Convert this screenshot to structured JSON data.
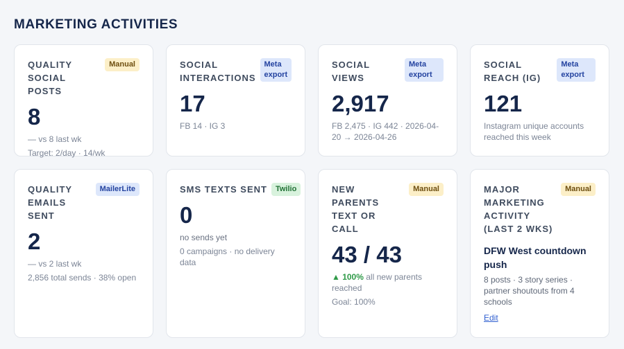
{
  "header": {
    "title": "MARKETING ACTIVITIES"
  },
  "cards": [
    {
      "label": "QUALITY SOCIAL POSTS",
      "badge": "Manual",
      "value": "8",
      "lines": [
        "— vs 8 last wk",
        "Target: 2/day · 14/wk"
      ]
    },
    {
      "label": "SOCIAL INTERACTIONS",
      "badge": "Meta export",
      "value": "17",
      "lines": [
        "FB 14 · IG 3"
      ]
    },
    {
      "label": "SOCIAL VIEWS",
      "badge": "Meta export",
      "value": "2,917",
      "lines": [
        "FB 2,475 · IG 442 · 2026-04-20 → 2026-04-26"
      ]
    },
    {
      "label": "SOCIAL REACH (IG)",
      "badge": "Meta export",
      "value": "121",
      "lines": [
        "Instagram unique accounts reached this week"
      ]
    },
    {
      "label": "QUALITY EMAILS SENT",
      "badge": "MailerLite",
      "value": "2",
      "lines": [
        "— vs 2 last wk",
        "2,856 total sends · 38% open"
      ]
    },
    {
      "label": "SMS TEXTS SENT",
      "badge": "Twilio",
      "value": "0",
      "lines": [
        "no sends yet",
        "0 campaigns · no delivery data"
      ]
    },
    {
      "label": "NEW PARENTS TEXT OR CALL",
      "badge": "Manual",
      "value": "43 / 43",
      "delta": "▲ 100%",
      "lines": [
        "all new parents reached",
        "Goal: 100%"
      ]
    },
    {
      "label": "MAJOR MARKETING ACTIVITY (LAST 2 WKS)",
      "badge": "Manual",
      "heading": "DFW West countdown push",
      "lines": [
        "8 posts · 3 story series · partner shoutouts from 4 schools"
      ],
      "link": "Edit"
    }
  ]
}
